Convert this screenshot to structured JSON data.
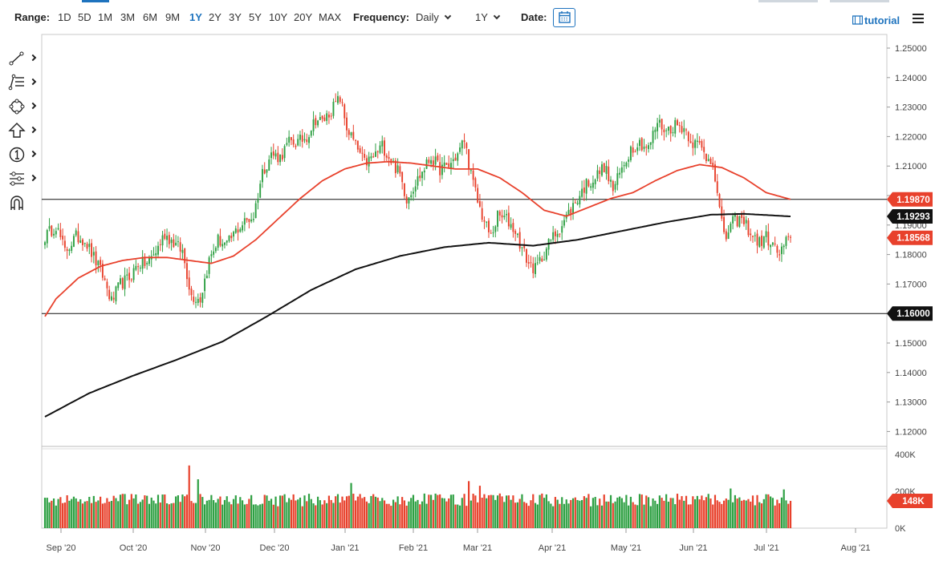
{
  "toolbar": {
    "range_label": "Range:",
    "ranges": [
      "1D",
      "5D",
      "1M",
      "3M",
      "6M",
      "9M",
      "1Y",
      "2Y",
      "3Y",
      "5Y",
      "10Y",
      "20Y",
      "MAX"
    ],
    "active_range": "1Y",
    "frequency_label": "Frequency:",
    "frequency_value": "Daily",
    "period_value": "1Y",
    "date_label": "Date:",
    "tutorial_label": "tutorial",
    "accent_color": "#1e73be"
  },
  "sidebar": {
    "tools": [
      "trendline-icon",
      "fibonacci-icon",
      "shapes-icon",
      "arrow-up-icon",
      "numbered-marker-icon",
      "indicator-settings-icon",
      "magnet-icon"
    ]
  },
  "chart_data": {
    "type": "candlestick",
    "instrument_note": "",
    "price_axis": {
      "ticks": [
        "1.25000",
        "1.24000",
        "1.23000",
        "1.22000",
        "1.21000",
        "1.20000",
        "1.19000",
        "1.18000",
        "1.17000",
        "1.16000",
        "1.15000",
        "1.14000",
        "1.13000",
        "1.12000"
      ],
      "ylim": [
        1.1155,
        1.2525
      ]
    },
    "volume_axis": {
      "ticks": [
        "400K",
        "200K",
        "0K"
      ],
      "ylim": [
        0,
        400000
      ]
    },
    "x_axis": {
      "ticks": [
        "Sep '20",
        "Oct '20",
        "Nov '20",
        "Dec '20",
        "Jan '21",
        "Feb '21",
        "Mar '21",
        "Apr '21",
        "May '21",
        "Jun '21",
        "Jul '21",
        "Aug '21"
      ]
    },
    "horizontal_lines": [
      {
        "value": 1.1987,
        "label": "1.19870"
      },
      {
        "value": 1.16,
        "label": "1.16000"
      }
    ],
    "price_labels": [
      {
        "value": 1.1987,
        "label": "1.19870",
        "color": "#e8412c",
        "series": "ma50"
      },
      {
        "value": 1.19293,
        "label": "1.19293",
        "color": "#111111",
        "series": "ma200"
      },
      {
        "value": 1.18568,
        "label": "1.18568",
        "color": "#e8412c",
        "series": "last"
      },
      {
        "value": 1.16,
        "label": "1.16000",
        "color": "#111111",
        "series": "level"
      }
    ],
    "volume_label": {
      "value": 148000,
      "label": "148K",
      "color": "#e8412c"
    },
    "colors": {
      "up": "#2ea043",
      "down": "#e8412c",
      "ma_short": "#e8412c",
      "ma_long": "#111111"
    },
    "close_anchors": [
      [
        0,
        1.186
      ],
      [
        5,
        1.19
      ],
      [
        9,
        1.181
      ],
      [
        14,
        1.186
      ],
      [
        18,
        1.185
      ],
      [
        22,
        1.179
      ],
      [
        26,
        1.173
      ],
      [
        30,
        1.164
      ],
      [
        34,
        1.17
      ],
      [
        38,
        1.172
      ],
      [
        42,
        1.177
      ],
      [
        46,
        1.177
      ],
      [
        50,
        1.181
      ],
      [
        54,
        1.187
      ],
      [
        58,
        1.184
      ],
      [
        62,
        1.181
      ],
      [
        66,
        1.166
      ],
      [
        70,
        1.165
      ],
      [
        74,
        1.178
      ],
      [
        78,
        1.185
      ],
      [
        82,
        1.183
      ],
      [
        86,
        1.188
      ],
      [
        90,
        1.191
      ],
      [
        94,
        1.193
      ],
      [
        98,
        1.208
      ],
      [
        102,
        1.214
      ],
      [
        106,
        1.213
      ],
      [
        110,
        1.218
      ],
      [
        114,
        1.218
      ],
      [
        118,
        1.22
      ],
      [
        122,
        1.226
      ],
      [
        125,
        1.225
      ],
      [
        130,
        1.23
      ],
      [
        133,
        1.233
      ],
      [
        136,
        1.223
      ],
      [
        140,
        1.217
      ],
      [
        144,
        1.211
      ],
      [
        148,
        1.213
      ],
      [
        152,
        1.217
      ],
      [
        156,
        1.212
      ],
      [
        160,
        1.207
      ],
      [
        163,
        1.199
      ],
      [
        166,
        1.203
      ],
      [
        170,
        1.208
      ],
      [
        174,
        1.213
      ],
      [
        178,
        1.209
      ],
      [
        182,
        1.21
      ],
      [
        186,
        1.214
      ],
      [
        189,
        1.219
      ],
      [
        192,
        1.207
      ],
      [
        195,
        1.198
      ],
      [
        198,
        1.191
      ],
      [
        201,
        1.186
      ],
      [
        204,
        1.193
      ],
      [
        208,
        1.192
      ],
      [
        212,
        1.188
      ],
      [
        215,
        1.182
      ],
      [
        218,
        1.177
      ],
      [
        221,
        1.175
      ],
      [
        224,
        1.179
      ],
      [
        228,
        1.185
      ],
      [
        232,
        1.189
      ],
      [
        236,
        1.194
      ],
      [
        240,
        1.199
      ],
      [
        244,
        1.204
      ],
      [
        248,
        1.206
      ],
      [
        252,
        1.21
      ],
      [
        256,
        1.202
      ],
      [
        260,
        1.209
      ],
      [
        264,
        1.216
      ],
      [
        268,
        1.218
      ],
      [
        272,
        1.216
      ],
      [
        276,
        1.225
      ],
      [
        280,
        1.222
      ],
      [
        284,
        1.224
      ],
      [
        288,
        1.223
      ],
      [
        292,
        1.218
      ],
      [
        295,
        1.217
      ],
      [
        298,
        1.213
      ],
      [
        301,
        1.212
      ],
      [
        303,
        1.2
      ],
      [
        305,
        1.19
      ],
      [
        307,
        1.186
      ],
      [
        310,
        1.191
      ],
      [
        313,
        1.192
      ],
      [
        316,
        1.19
      ],
      [
        319,
        1.186
      ],
      [
        322,
        1.184
      ],
      [
        325,
        1.186
      ],
      [
        328,
        1.183
      ],
      [
        331,
        1.18
      ],
      [
        334,
        1.184
      ],
      [
        336,
        1.1857
      ]
    ],
    "ma_short_anchors": [
      [
        0,
        1.159
      ],
      [
        5,
        1.165
      ],
      [
        15,
        1.172
      ],
      [
        25,
        1.176
      ],
      [
        35,
        1.178
      ],
      [
        45,
        1.179
      ],
      [
        55,
        1.179
      ],
      [
        65,
        1.178
      ],
      [
        75,
        1.177
      ],
      [
        85,
        1.1795
      ],
      [
        95,
        1.185
      ],
      [
        105,
        1.192
      ],
      [
        115,
        1.199
      ],
      [
        125,
        1.205
      ],
      [
        135,
        1.209
      ],
      [
        145,
        1.211
      ],
      [
        155,
        1.2115
      ],
      [
        165,
        1.211
      ],
      [
        175,
        1.21
      ],
      [
        185,
        1.209
      ],
      [
        195,
        1.209
      ],
      [
        205,
        1.206
      ],
      [
        215,
        1.201
      ],
      [
        225,
        1.195
      ],
      [
        235,
        1.193
      ],
      [
        245,
        1.196
      ],
      [
        255,
        1.199
      ],
      [
        265,
        1.201
      ],
      [
        275,
        1.205
      ],
      [
        285,
        1.2085
      ],
      [
        295,
        1.2105
      ],
      [
        305,
        1.2095
      ],
      [
        315,
        1.206
      ],
      [
        325,
        1.201
      ],
      [
        336,
        1.1987
      ]
    ],
    "ma_long_anchors": [
      [
        0,
        1.125
      ],
      [
        20,
        1.133
      ],
      [
        40,
        1.139
      ],
      [
        60,
        1.1445
      ],
      [
        80,
        1.1505
      ],
      [
        100,
        1.159
      ],
      [
        120,
        1.168
      ],
      [
        140,
        1.175
      ],
      [
        160,
        1.1795
      ],
      [
        180,
        1.1825
      ],
      [
        200,
        1.184
      ],
      [
        220,
        1.183
      ],
      [
        240,
        1.185
      ],
      [
        260,
        1.188
      ],
      [
        280,
        1.191
      ],
      [
        300,
        1.1935
      ],
      [
        315,
        1.1938
      ],
      [
        336,
        1.19293
      ]
    ]
  }
}
